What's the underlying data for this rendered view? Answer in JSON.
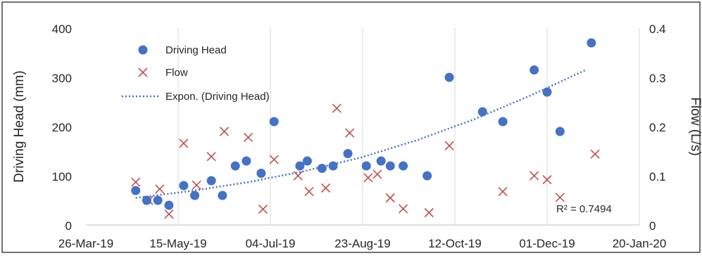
{
  "chart_data": {
    "type": "scatter",
    "title": "",
    "xlabel": "",
    "ylabel": "Driving Head (mm)",
    "y2label": "Flow (L/s)",
    "x_ticks": [
      "26-Mar-19",
      "15-May-19",
      "04-Jul-19",
      "23-Aug-19",
      "12-Oct-19",
      "01-Dec-19",
      "20-Jan-20"
    ],
    "xlim": [
      "2019-03-26",
      "2020-01-20"
    ],
    "ylim": [
      0,
      400
    ],
    "y_ticks": [
      "0",
      "100",
      "200",
      "300",
      "400"
    ],
    "y2lim": [
      0,
      0.4
    ],
    "y2_ticks": [
      "0",
      "0.1",
      "0.2",
      "0.3",
      "0.4"
    ],
    "grid": "vertical",
    "legend_position": "top-left",
    "series": [
      {
        "name": "Driving Head",
        "axis": "left",
        "marker": "circle",
        "color": "#4472c4",
        "points": [
          {
            "x": "2019-04-22",
            "y": 70
          },
          {
            "x": "2019-04-28",
            "y": 50
          },
          {
            "x": "2019-05-04",
            "y": 50
          },
          {
            "x": "2019-05-10",
            "y": 40
          },
          {
            "x": "2019-05-18",
            "y": 80
          },
          {
            "x": "2019-05-24",
            "y": 60
          },
          {
            "x": "2019-06-02",
            "y": 90
          },
          {
            "x": "2019-06-08",
            "y": 60
          },
          {
            "x": "2019-06-15",
            "y": 120
          },
          {
            "x": "2019-06-21",
            "y": 130
          },
          {
            "x": "2019-06-29",
            "y": 105
          },
          {
            "x": "2019-07-06",
            "y": 210
          },
          {
            "x": "2019-07-20",
            "y": 120
          },
          {
            "x": "2019-07-24",
            "y": 130
          },
          {
            "x": "2019-08-01",
            "y": 115
          },
          {
            "x": "2019-08-07",
            "y": 120
          },
          {
            "x": "2019-08-15",
            "y": 145
          },
          {
            "x": "2019-08-25",
            "y": 120
          },
          {
            "x": "2019-09-02",
            "y": 130
          },
          {
            "x": "2019-09-07",
            "y": 120
          },
          {
            "x": "2019-09-14",
            "y": 120
          },
          {
            "x": "2019-09-27",
            "y": 100
          },
          {
            "x": "2019-10-09",
            "y": 300
          },
          {
            "x": "2019-10-27",
            "y": 230
          },
          {
            "x": "2019-11-07",
            "y": 210
          },
          {
            "x": "2019-11-24",
            "y": 315
          },
          {
            "x": "2019-12-01",
            "y": 270
          },
          {
            "x": "2019-12-08",
            "y": 190
          },
          {
            "x": "2019-12-25",
            "y": 370
          }
        ]
      },
      {
        "name": "Flow",
        "axis": "right",
        "marker": "x",
        "color": "#c0504d",
        "points": [
          {
            "x": "2019-04-22",
            "y": 0.087
          },
          {
            "x": "2019-04-29",
            "y": 0.05
          },
          {
            "x": "2019-05-05",
            "y": 0.073
          },
          {
            "x": "2019-05-10",
            "y": 0.022
          },
          {
            "x": "2019-05-18",
            "y": 0.166
          },
          {
            "x": "2019-05-25",
            "y": 0.081
          },
          {
            "x": "2019-06-02",
            "y": 0.139
          },
          {
            "x": "2019-06-09",
            "y": 0.19
          },
          {
            "x": "2019-06-22",
            "y": 0.178
          },
          {
            "x": "2019-06-30",
            "y": 0.032
          },
          {
            "x": "2019-07-06",
            "y": 0.133
          },
          {
            "x": "2019-07-19",
            "y": 0.1
          },
          {
            "x": "2019-07-25",
            "y": 0.068
          },
          {
            "x": "2019-08-03",
            "y": 0.075
          },
          {
            "x": "2019-08-09",
            "y": 0.237
          },
          {
            "x": "2019-08-16",
            "y": 0.187
          },
          {
            "x": "2019-08-26",
            "y": 0.096
          },
          {
            "x": "2019-08-31",
            "y": 0.103
          },
          {
            "x": "2019-09-07",
            "y": 0.055
          },
          {
            "x": "2019-09-14",
            "y": 0.033
          },
          {
            "x": "2019-09-28",
            "y": 0.025
          },
          {
            "x": "2019-10-09",
            "y": 0.161
          },
          {
            "x": "2019-11-07",
            "y": 0.068
          },
          {
            "x": "2019-11-24",
            "y": 0.1
          },
          {
            "x": "2019-12-01",
            "y": 0.092
          },
          {
            "x": "2019-12-08",
            "y": 0.056
          },
          {
            "x": "2019-12-27",
            "y": 0.144
          }
        ]
      }
    ],
    "trendline": {
      "name": "Expon. (Driving Head)",
      "type": "exponential",
      "of_series": "Driving Head",
      "style": "dotted",
      "color": "#4472c4",
      "points": [
        {
          "x": "2019-04-22",
          "y": 55
        },
        {
          "x": "2019-05-22",
          "y": 69
        },
        {
          "x": "2019-06-22",
          "y": 87
        },
        {
          "x": "2019-07-22",
          "y": 109
        },
        {
          "x": "2019-08-22",
          "y": 137
        },
        {
          "x": "2019-09-22",
          "y": 173
        },
        {
          "x": "2019-10-22",
          "y": 214
        },
        {
          "x": "2019-11-22",
          "y": 263
        },
        {
          "x": "2019-12-22",
          "y": 315
        }
      ],
      "r2_label": "R² = 0.7494"
    }
  }
}
